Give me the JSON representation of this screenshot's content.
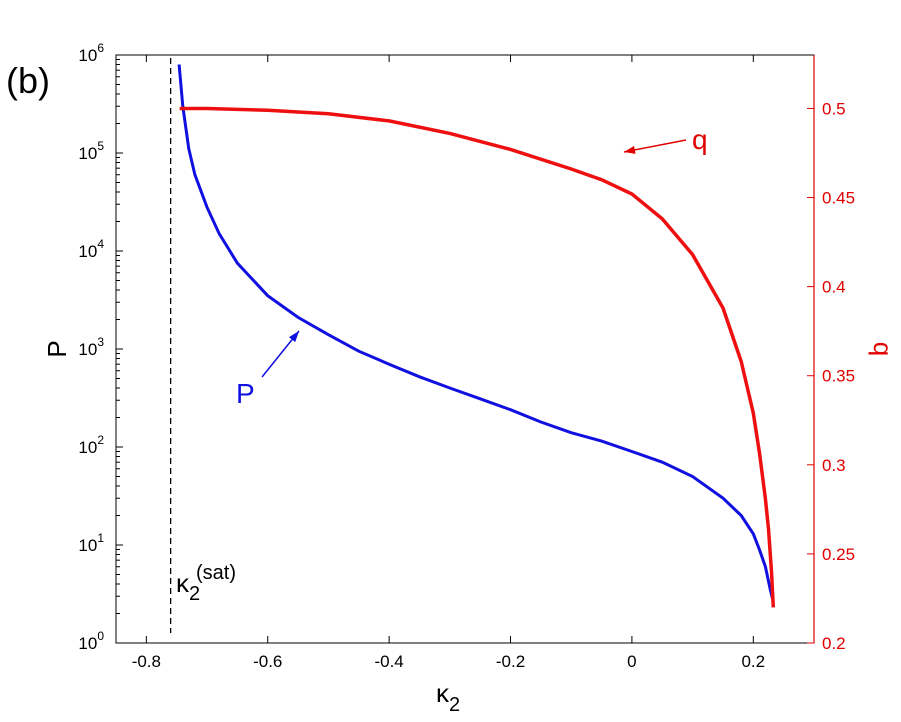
{
  "panel_label": "(b)",
  "colors": {
    "left_axis": "#000000",
    "right_axis": "#e00000",
    "P_series": "#1010e0",
    "q_series": "#ee1010",
    "annotation_P": "#1010e0",
    "annotation_q": "#e00000",
    "dashed": "#000000"
  },
  "chart_data": {
    "type": "line",
    "xlabel": "κ",
    "xlabel_subscript": "2",
    "ylabel_left": "P",
    "ylabel_right": "q",
    "xlim": [
      -0.85,
      0.3
    ],
    "ylim_left": [
      1,
      1000000
    ],
    "ylim_right": [
      0.2,
      0.53
    ],
    "left_scale": "log",
    "grid": false,
    "x_ticks": [
      -0.8,
      -0.6,
      -0.4,
      -0.2,
      0,
      0.2
    ],
    "x_tick_labels": [
      "-0.8",
      "-0.6",
      "-0.4",
      "-0.2",
      "0",
      "0.2"
    ],
    "left_ticks": [
      {
        "value": 1,
        "base": "10",
        "exp": "0"
      },
      {
        "value": 10,
        "base": "10",
        "exp": "1"
      },
      {
        "value": 100,
        "base": "10",
        "exp": "2"
      },
      {
        "value": 1000,
        "base": "10",
        "exp": "3"
      },
      {
        "value": 10000,
        "base": "10",
        "exp": "4"
      },
      {
        "value": 100000,
        "base": "10",
        "exp": "5"
      },
      {
        "value": 1000000,
        "base": "10",
        "exp": "6"
      }
    ],
    "right_ticks": [
      0.2,
      0.25,
      0.3,
      0.35,
      0.4,
      0.45,
      0.5
    ],
    "right_tick_labels": [
      "0.2",
      "0.25",
      "0.3",
      "0.35",
      "0.4",
      "0.45",
      "0.5"
    ],
    "series": [
      {
        "name": "P",
        "axis": "left",
        "x": [
          -0.746,
          -0.74,
          -0.73,
          -0.72,
          -0.7,
          -0.68,
          -0.65,
          -0.6,
          -0.55,
          -0.5,
          -0.45,
          -0.4,
          -0.35,
          -0.3,
          -0.25,
          -0.2,
          -0.15,
          -0.1,
          -0.05,
          0.0,
          0.05,
          0.1,
          0.15,
          0.18,
          0.2,
          0.21,
          0.22,
          0.228,
          0.232
        ],
        "y": [
          800000,
          300000,
          110000,
          60000,
          28000,
          15000,
          7500,
          3500,
          2100,
          1400,
          950,
          700,
          520,
          400,
          310,
          240,
          180,
          140,
          115,
          90,
          70,
          50,
          30,
          20,
          13,
          9,
          6,
          3.5,
          2.8
        ]
      },
      {
        "name": "q",
        "axis": "right",
        "x": [
          -0.745,
          -0.7,
          -0.6,
          -0.5,
          -0.4,
          -0.3,
          -0.2,
          -0.1,
          -0.05,
          0.0,
          0.05,
          0.1,
          0.15,
          0.18,
          0.2,
          0.21,
          0.22,
          0.225,
          0.23,
          0.233
        ],
        "y": [
          0.5,
          0.5,
          0.499,
          0.497,
          0.493,
          0.486,
          0.477,
          0.466,
          0.46,
          0.452,
          0.438,
          0.418,
          0.388,
          0.358,
          0.329,
          0.307,
          0.281,
          0.264,
          0.24,
          0.22
        ]
      }
    ],
    "annotations": [
      {
        "text": "q",
        "series": "q"
      },
      {
        "text": "P",
        "series": "P"
      }
    ],
    "vertical_line": {
      "x": -0.76,
      "style": "dashed",
      "label_base": "κ",
      "label_sub": "2",
      "label_sup": "(sat)"
    }
  }
}
